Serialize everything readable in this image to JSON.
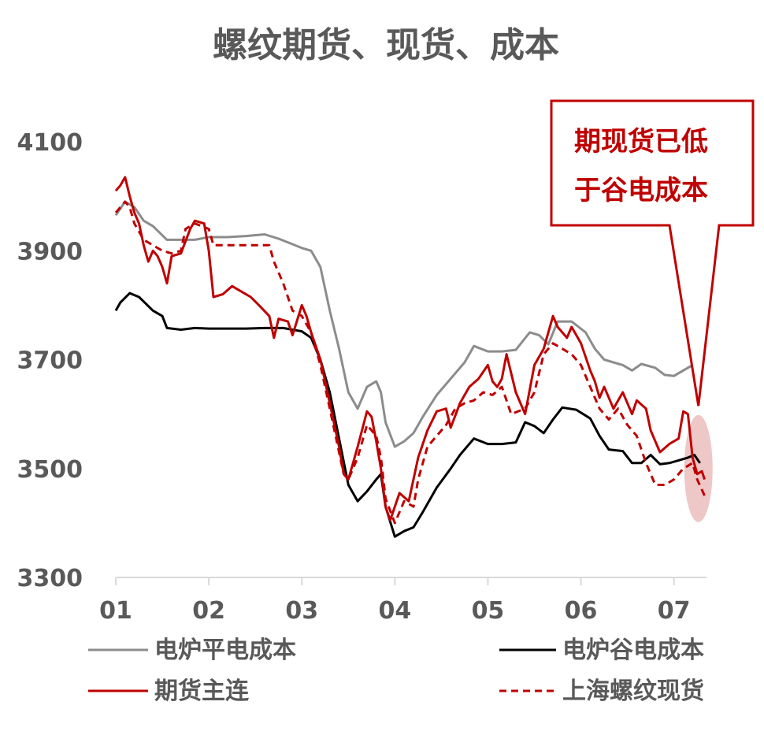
{
  "chart_data": {
    "type": "line",
    "title": "螺纹期货、现货、成本",
    "xlabel": "",
    "ylabel": "",
    "ylim": [
      3300,
      4100
    ],
    "yticks": [
      "4100",
      "3900",
      "3700",
      "3500",
      "3300"
    ],
    "xticks": [
      "01",
      "02",
      "03",
      "04",
      "05",
      "06",
      "07"
    ],
    "xrange_months": [
      1.0,
      7.35
    ],
    "grid": false,
    "legend_position": "bottom",
    "colors": {
      "电炉平电成本": "#8c8c8c",
      "电炉谷电成本": "#000000",
      "期货主连": "#c00000",
      "上海螺纹现货": "#c00000",
      "callout": "#c00000",
      "highlight": "#e8b4b4"
    },
    "series": [
      {
        "name": "电炉平电成本",
        "style": "solid",
        "points": [
          [
            1.0,
            3965
          ],
          [
            1.1,
            3990
          ],
          [
            1.2,
            3980
          ],
          [
            1.3,
            3955
          ],
          [
            1.4,
            3945
          ],
          [
            1.55,
            3920
          ],
          [
            1.7,
            3920
          ],
          [
            1.85,
            3920
          ],
          [
            2.0,
            3925
          ],
          [
            2.2,
            3925
          ],
          [
            2.4,
            3927
          ],
          [
            2.6,
            3930
          ],
          [
            2.75,
            3922
          ],
          [
            2.9,
            3912
          ],
          [
            3.0,
            3905
          ],
          [
            3.1,
            3900
          ],
          [
            3.2,
            3870
          ],
          [
            3.3,
            3790
          ],
          [
            3.4,
            3720
          ],
          [
            3.5,
            3640
          ],
          [
            3.6,
            3610
          ],
          [
            3.7,
            3650
          ],
          [
            3.8,
            3660
          ],
          [
            3.85,
            3640
          ],
          [
            3.9,
            3585
          ],
          [
            4.0,
            3540
          ],
          [
            4.1,
            3550
          ],
          [
            4.2,
            3565
          ],
          [
            4.3,
            3595
          ],
          [
            4.45,
            3635
          ],
          [
            4.6,
            3665
          ],
          [
            4.75,
            3695
          ],
          [
            4.85,
            3725
          ],
          [
            5.0,
            3715
          ],
          [
            5.15,
            3715
          ],
          [
            5.3,
            3718
          ],
          [
            5.45,
            3750
          ],
          [
            5.55,
            3745
          ],
          [
            5.65,
            3728
          ],
          [
            5.75,
            3770
          ],
          [
            5.9,
            3770
          ],
          [
            6.05,
            3750
          ],
          [
            6.15,
            3720
          ],
          [
            6.25,
            3700
          ],
          [
            6.35,
            3695
          ],
          [
            6.45,
            3690
          ],
          [
            6.55,
            3680
          ],
          [
            6.65,
            3692
          ],
          [
            6.8,
            3685
          ],
          [
            6.9,
            3672
          ],
          [
            7.0,
            3670
          ],
          [
            7.1,
            3680
          ],
          [
            7.2,
            3690
          ],
          [
            7.3,
            3675
          ]
        ]
      },
      {
        "name": "电炉谷电成本",
        "style": "solid",
        "points": [
          [
            1.0,
            3790
          ],
          [
            1.05,
            3805
          ],
          [
            1.15,
            3822
          ],
          [
            1.25,
            3815
          ],
          [
            1.4,
            3790
          ],
          [
            1.5,
            3780
          ],
          [
            1.55,
            3758
          ],
          [
            1.7,
            3755
          ],
          [
            1.85,
            3758
          ],
          [
            2.0,
            3757
          ],
          [
            2.2,
            3757
          ],
          [
            2.4,
            3757
          ],
          [
            2.6,
            3758
          ],
          [
            2.8,
            3758
          ],
          [
            3.0,
            3752
          ],
          [
            3.1,
            3740
          ],
          [
            3.2,
            3700
          ],
          [
            3.3,
            3640
          ],
          [
            3.4,
            3555
          ],
          [
            3.5,
            3470
          ],
          [
            3.6,
            3440
          ],
          [
            3.7,
            3458
          ],
          [
            3.8,
            3480
          ],
          [
            3.85,
            3490
          ],
          [
            3.9,
            3430
          ],
          [
            4.0,
            3375
          ],
          [
            4.1,
            3385
          ],
          [
            4.2,
            3392
          ],
          [
            4.3,
            3420
          ],
          [
            4.45,
            3465
          ],
          [
            4.6,
            3500
          ],
          [
            4.7,
            3525
          ],
          [
            4.85,
            3555
          ],
          [
            5.0,
            3545
          ],
          [
            5.15,
            3545
          ],
          [
            5.3,
            3548
          ],
          [
            5.4,
            3585
          ],
          [
            5.5,
            3578
          ],
          [
            5.6,
            3565
          ],
          [
            5.7,
            3590
          ],
          [
            5.8,
            3612
          ],
          [
            5.95,
            3608
          ],
          [
            6.1,
            3592
          ],
          [
            6.2,
            3560
          ],
          [
            6.3,
            3535
          ],
          [
            6.45,
            3532
          ],
          [
            6.55,
            3510
          ],
          [
            6.65,
            3510
          ],
          [
            6.75,
            3525
          ],
          [
            6.85,
            3508
          ],
          [
            6.95,
            3510
          ],
          [
            7.05,
            3515
          ],
          [
            7.15,
            3520
          ],
          [
            7.22,
            3525
          ],
          [
            7.28,
            3510
          ]
        ]
      },
      {
        "name": "期货主连",
        "style": "solid",
        "points": [
          [
            1.0,
            4010
          ],
          [
            1.05,
            4020
          ],
          [
            1.1,
            4035
          ],
          [
            1.15,
            4000
          ],
          [
            1.2,
            3970
          ],
          [
            1.25,
            3950
          ],
          [
            1.3,
            3910
          ],
          [
            1.35,
            3880
          ],
          [
            1.4,
            3900
          ],
          [
            1.45,
            3890
          ],
          [
            1.5,
            3870
          ],
          [
            1.55,
            3840
          ],
          [
            1.6,
            3890
          ],
          [
            1.7,
            3895
          ],
          [
            1.8,
            3940
          ],
          [
            1.85,
            3955
          ],
          [
            1.95,
            3950
          ],
          [
            2.0,
            3900
          ],
          [
            2.05,
            3815
          ],
          [
            2.15,
            3820
          ],
          [
            2.25,
            3835
          ],
          [
            2.35,
            3825
          ],
          [
            2.45,
            3815
          ],
          [
            2.55,
            3798
          ],
          [
            2.65,
            3780
          ],
          [
            2.7,
            3740
          ],
          [
            2.75,
            3775
          ],
          [
            2.85,
            3770
          ],
          [
            2.9,
            3745
          ],
          [
            3.0,
            3800
          ],
          [
            3.05,
            3780
          ],
          [
            3.1,
            3750
          ],
          [
            3.2,
            3700
          ],
          [
            3.3,
            3620
          ],
          [
            3.4,
            3540
          ],
          [
            3.45,
            3490
          ],
          [
            3.5,
            3480
          ],
          [
            3.6,
            3540
          ],
          [
            3.7,
            3605
          ],
          [
            3.75,
            3595
          ],
          [
            3.8,
            3550
          ],
          [
            3.85,
            3500
          ],
          [
            3.9,
            3430
          ],
          [
            3.95,
            3405
          ],
          [
            4.0,
            3430
          ],
          [
            4.05,
            3455
          ],
          [
            4.15,
            3440
          ],
          [
            4.25,
            3520
          ],
          [
            4.35,
            3570
          ],
          [
            4.45,
            3605
          ],
          [
            4.55,
            3610
          ],
          [
            4.6,
            3575
          ],
          [
            4.7,
            3620
          ],
          [
            4.8,
            3650
          ],
          [
            4.9,
            3665
          ],
          [
            5.0,
            3690
          ],
          [
            5.05,
            3660
          ],
          [
            5.1,
            3650
          ],
          [
            5.15,
            3665
          ],
          [
            5.2,
            3710
          ],
          [
            5.3,
            3640
          ],
          [
            5.4,
            3600
          ],
          [
            5.5,
            3690
          ],
          [
            5.6,
            3720
          ],
          [
            5.7,
            3780
          ],
          [
            5.75,
            3760
          ],
          [
            5.85,
            3740
          ],
          [
            5.9,
            3760
          ],
          [
            6.0,
            3730
          ],
          [
            6.1,
            3680
          ],
          [
            6.15,
            3660
          ],
          [
            6.2,
            3630
          ],
          [
            6.25,
            3650
          ],
          [
            6.35,
            3610
          ],
          [
            6.45,
            3640
          ],
          [
            6.5,
            3620
          ],
          [
            6.55,
            3600
          ],
          [
            6.6,
            3625
          ],
          [
            6.7,
            3610
          ],
          [
            6.75,
            3570
          ],
          [
            6.8,
            3550
          ],
          [
            6.85,
            3530
          ],
          [
            6.95,
            3545
          ],
          [
            7.05,
            3555
          ],
          [
            7.1,
            3605
          ],
          [
            7.15,
            3600
          ],
          [
            7.2,
            3520
          ],
          [
            7.25,
            3490
          ],
          [
            7.3,
            3495
          ],
          [
            7.33,
            3480
          ]
        ]
      },
      {
        "name": "上海螺纹现货",
        "style": "dashed",
        "points": [
          [
            1.0,
            3970
          ],
          [
            1.1,
            3990
          ],
          [
            1.15,
            3980
          ],
          [
            1.2,
            3950
          ],
          [
            1.3,
            3920
          ],
          [
            1.4,
            3910
          ],
          [
            1.5,
            3900
          ],
          [
            1.6,
            3895
          ],
          [
            1.7,
            3900
          ],
          [
            1.75,
            3940
          ],
          [
            1.85,
            3950
          ],
          [
            2.0,
            3940
          ],
          [
            2.05,
            3910
          ],
          [
            2.2,
            3910
          ],
          [
            2.4,
            3910
          ],
          [
            2.6,
            3910
          ],
          [
            2.65,
            3910
          ],
          [
            2.7,
            3880
          ],
          [
            2.8,
            3840
          ],
          [
            2.9,
            3790
          ],
          [
            3.0,
            3780
          ],
          [
            3.1,
            3750
          ],
          [
            3.2,
            3690
          ],
          [
            3.3,
            3610
          ],
          [
            3.4,
            3530
          ],
          [
            3.45,
            3490
          ],
          [
            3.5,
            3480
          ],
          [
            3.6,
            3520
          ],
          [
            3.7,
            3580
          ],
          [
            3.8,
            3560
          ],
          [
            3.85,
            3520
          ],
          [
            3.9,
            3445
          ],
          [
            4.0,
            3400
          ],
          [
            4.1,
            3440
          ],
          [
            4.2,
            3430
          ],
          [
            4.25,
            3480
          ],
          [
            4.35,
            3540
          ],
          [
            4.45,
            3560
          ],
          [
            4.55,
            3580
          ],
          [
            4.65,
            3610
          ],
          [
            4.75,
            3620
          ],
          [
            4.85,
            3625
          ],
          [
            4.95,
            3640
          ],
          [
            5.05,
            3635
          ],
          [
            5.15,
            3650
          ],
          [
            5.25,
            3600
          ],
          [
            5.4,
            3610
          ],
          [
            5.5,
            3640
          ],
          [
            5.6,
            3710
          ],
          [
            5.7,
            3730
          ],
          [
            5.8,
            3720
          ],
          [
            5.9,
            3710
          ],
          [
            6.0,
            3690
          ],
          [
            6.1,
            3650
          ],
          [
            6.2,
            3610
          ],
          [
            6.3,
            3590
          ],
          [
            6.4,
            3610
          ],
          [
            6.5,
            3580
          ],
          [
            6.6,
            3560
          ],
          [
            6.7,
            3510
          ],
          [
            6.8,
            3470
          ],
          [
            6.9,
            3470
          ],
          [
            7.0,
            3480
          ],
          [
            7.1,
            3500
          ],
          [
            7.2,
            3510
          ],
          [
            7.25,
            3480
          ],
          [
            7.33,
            3450
          ]
        ]
      }
    ],
    "annotation": {
      "lines": [
        "期现货已低",
        "于谷电成本"
      ],
      "target_month": 7.28,
      "target_value": 3500
    }
  }
}
